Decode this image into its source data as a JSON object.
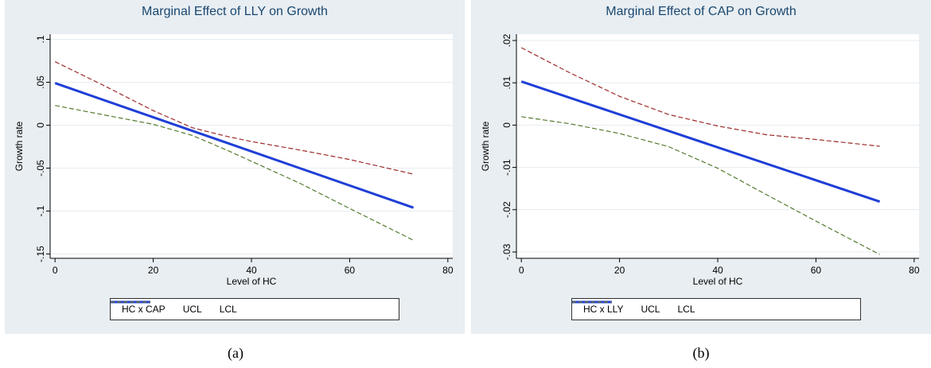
{
  "colors": {
    "panel_bg": "#e8eef2",
    "plot_bg": "#ffffff",
    "grid": "#e6ecf0",
    "title": "#1a476f",
    "main_line": "#1f3fd6",
    "ucl_line": "#9c2a2a",
    "lcl_line": "#557a2f"
  },
  "captions": [
    "(a)",
    "(b)"
  ],
  "chart_data": [
    {
      "type": "line",
      "title": "Marginal Effect of LLY on Growth",
      "xlabel": "Level of HC",
      "ylabel": "Growth rate",
      "xlim": [
        -1,
        81
      ],
      "ylim": [
        -0.155,
        0.106
      ],
      "x_ticks": [
        0,
        20,
        40,
        60,
        80
      ],
      "x_tick_labels": [
        "0",
        "20",
        "40",
        "60",
        "80"
      ],
      "y_ticks": [
        -0.15,
        -0.1,
        -0.05,
        0,
        0.05,
        0.1
      ],
      "y_tick_labels": [
        "-.15",
        "-.1",
        "-.05",
        "0",
        ".05",
        ".1"
      ],
      "grid": true,
      "legend_position": "bottom",
      "series": [
        {
          "name": "HC x CAP",
          "style": "solid",
          "color": "#1f3fd6",
          "x": [
            0,
            73
          ],
          "y": [
            0.049,
            -0.096
          ]
        },
        {
          "name": "UCL",
          "style": "dashed",
          "color": "#9c2a2a",
          "x": [
            0,
            10,
            20,
            28,
            35,
            40,
            50,
            60,
            73
          ],
          "y": [
            0.074,
            0.046,
            0.017,
            -0.003,
            -0.013,
            -0.019,
            -0.029,
            -0.04,
            -0.057
          ]
        },
        {
          "name": "LCL",
          "style": "dashed",
          "color": "#557a2f",
          "x": [
            0,
            10,
            20,
            28,
            35,
            40,
            50,
            60,
            73
          ],
          "y": [
            0.023,
            0.012,
            0.001,
            -0.012,
            -0.029,
            -0.042,
            -0.068,
            -0.097,
            -0.134
          ]
        }
      ]
    },
    {
      "type": "line",
      "title": "Marginal Effect of CAP on Growth",
      "xlabel": "Level of HC",
      "ylabel": "Growth rate",
      "xlim": [
        -1,
        81
      ],
      "ylim": [
        -0.0315,
        0.0215
      ],
      "x_ticks": [
        0,
        20,
        40,
        60,
        80
      ],
      "x_tick_labels": [
        "0",
        "20",
        "40",
        "60",
        "80"
      ],
      "y_ticks": [
        -0.03,
        -0.02,
        -0.01,
        0,
        0.01,
        0.02
      ],
      "y_tick_labels": [
        "-.03",
        "-.02",
        "-.01",
        "0",
        ".01",
        ".02"
      ],
      "grid": true,
      "legend_position": "bottom",
      "series": [
        {
          "name": "HC x LLY",
          "style": "solid",
          "color": "#1f3fd6",
          "x": [
            0,
            73
          ],
          "y": [
            0.0103,
            -0.0181
          ]
        },
        {
          "name": "UCL",
          "style": "dashed",
          "color": "#9c2a2a",
          "x": [
            0,
            10,
            20,
            30,
            40,
            50,
            60,
            73
          ],
          "y": [
            0.0183,
            0.0123,
            0.0068,
            0.0025,
            -0.0002,
            -0.0023,
            -0.0034,
            -0.005
          ]
        },
        {
          "name": "LCL",
          "style": "dashed",
          "color": "#557a2f",
          "x": [
            0,
            10,
            20,
            30,
            40,
            50,
            60,
            73
          ],
          "y": [
            0.002,
            0.0003,
            -0.002,
            -0.0051,
            -0.0102,
            -0.0165,
            -0.0227,
            -0.0306
          ]
        }
      ]
    }
  ]
}
